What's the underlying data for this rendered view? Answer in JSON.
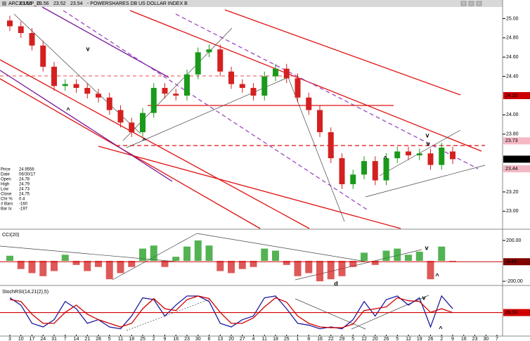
{
  "header": {
    "symbol": "ARCX:UUP_D",
    "name": "- POWERSHARES DB US DOLLAR INDEX B",
    "quote": [
      "23.55",
      "23.56",
      "23.52",
      "23.54"
    ]
  },
  "info": [
    [
      "Price",
      "24.9556"
    ],
    [
      "Date",
      "06/30/17"
    ],
    [
      "Open",
      "24.78"
    ],
    [
      "High",
      "24.79"
    ],
    [
      "Low",
      "24.73"
    ],
    [
      "Close",
      "24.75"
    ],
    [
      "Chr %",
      "0.4"
    ],
    [
      "# Bars",
      "-160"
    ],
    [
      "Bar Ix",
      "-197"
    ]
  ],
  "chart_data": [
    {
      "type": "candlestick",
      "categories": [
        "3",
        "10",
        "17",
        "24",
        "31",
        "7",
        "14",
        "21",
        "28",
        "5",
        "11",
        "18",
        "25",
        "2",
        "9",
        "16",
        "23",
        "30",
        "6",
        "13",
        "20",
        "27",
        "4",
        "11",
        "18",
        "25",
        "1",
        "8",
        "16",
        "22",
        "29",
        "5",
        "12",
        "20",
        "26",
        "5",
        "12",
        "19",
        "26",
        "2",
        "9",
        "16",
        "23",
        "30",
        "7"
      ],
      "open": [
        24.98,
        24.92,
        24.85,
        24.72,
        24.5,
        24.3,
        24.32,
        24.28,
        24.22,
        24.18,
        24.05,
        23.92,
        23.82,
        24.02,
        24.28,
        24.22,
        24.2,
        24.42,
        24.65,
        24.68,
        24.45,
        24.32,
        24.28,
        24.2,
        24.4,
        24.48,
        24.38,
        24.18,
        24.05,
        23.82,
        23.55,
        23.28,
        23.38,
        23.52,
        23.32,
        23.55,
        23.62,
        23.58,
        23.6,
        23.48,
        23.62,
        null,
        null,
        null,
        null
      ],
      "high": [
        25.03,
        24.97,
        24.9,
        24.77,
        24.55,
        24.37,
        24.37,
        24.33,
        24.27,
        24.23,
        24.1,
        23.97,
        24.07,
        24.33,
        24.33,
        24.27,
        24.47,
        24.7,
        24.73,
        24.73,
        24.5,
        24.37,
        24.33,
        24.45,
        24.53,
        24.53,
        24.43,
        24.23,
        24.1,
        23.87,
        23.6,
        23.43,
        23.57,
        23.57,
        23.6,
        23.67,
        23.67,
        23.65,
        23.65,
        23.71,
        23.67,
        null,
        null,
        null,
        null
      ],
      "low": [
        24.87,
        24.8,
        24.67,
        24.45,
        24.25,
        24.25,
        24.23,
        24.17,
        24.13,
        24.0,
        23.87,
        23.77,
        23.77,
        23.97,
        24.17,
        24.15,
        24.15,
        24.37,
        24.6,
        24.4,
        24.27,
        24.23,
        24.15,
        24.15,
        24.35,
        24.33,
        24.13,
        24.0,
        23.77,
        23.5,
        23.23,
        23.23,
        23.33,
        23.27,
        23.27,
        23.5,
        23.53,
        23.53,
        23.43,
        23.43,
        23.49,
        null,
        null,
        null,
        null
      ],
      "close": [
        24.92,
        24.85,
        24.72,
        24.5,
        24.3,
        24.32,
        24.28,
        24.22,
        24.18,
        24.05,
        23.92,
        23.82,
        24.02,
        24.28,
        24.22,
        24.2,
        24.42,
        24.65,
        24.68,
        24.45,
        24.32,
        24.28,
        24.2,
        24.4,
        24.48,
        24.38,
        24.18,
        24.05,
        23.82,
        23.55,
        23.28,
        23.38,
        23.52,
        23.32,
        23.55,
        23.62,
        23.58,
        23.6,
        23.48,
        23.66,
        23.54,
        null,
        null,
        null,
        null
      ],
      "up_color": "#1a9a1a",
      "down_color": "#d42020",
      "ylim": [
        22.82,
        25.12
      ],
      "yticks": [
        {
          "value": 25,
          "label": "25.00"
        },
        {
          "value": 24.8,
          "label": "24.80"
        },
        {
          "value": 24.6,
          "label": "24.60"
        },
        {
          "value": 24.4,
          "label": "24.40"
        },
        {
          "value": 24,
          "label": "24.00"
        },
        {
          "value": 23.8,
          "label": "23.80"
        },
        {
          "value": 23.2,
          "label": "23.20"
        },
        {
          "value": 23,
          "label": "23.00"
        }
      ],
      "readouts": [
        {
          "value": 24.2,
          "label": "24.20",
          "bg": "#cc0000",
          "fg": "#ffffff"
        },
        {
          "value": 23.73,
          "label": "23.73",
          "bg": "#f4b8c4",
          "fg": "#cc0000"
        },
        {
          "value": 23.44,
          "label": "23.44",
          "bg": "#f4b8c4",
          "fg": "#cc0000"
        }
      ],
      "last_bg": "#000000",
      "last_fg": "#ffffff",
      "annotations": [
        {
          "text": "v",
          "color": "#c000c0"
        },
        {
          "text": "^",
          "color": "#c000c0"
        },
        {
          "text": "^",
          "color": "#c000c0"
        },
        {
          "text": "v",
          "color": "#1a9a1a"
        },
        {
          "text": "v",
          "color": "#c000c0"
        },
        {
          "text": "^",
          "color": "#1a9a1a"
        }
      ]
    },
    {
      "type": "bar",
      "title": "CCI(20)",
      "values": [
        50,
        -80,
        -120,
        -150,
        -100,
        60,
        -40,
        -100,
        -60,
        -180,
        -120,
        -60,
        120,
        150,
        -60,
        40,
        140,
        200,
        150,
        -100,
        -120,
        -80,
        -60,
        120,
        100,
        -40,
        -150,
        -120,
        -200,
        -180,
        -150,
        -60,
        80,
        -40,
        100,
        120,
        60,
        90,
        -180,
        140,
        -8.44,
        null,
        null,
        null,
        null
      ],
      "up_color": "#1a9a1a",
      "down_color": "#d42020",
      "ylim": [
        -234,
        303
      ],
      "yticks": [
        {
          "value": 200,
          "label": "200.00"
        },
        {
          "value": -200,
          "label": "-200.00"
        }
      ],
      "last_bg": "#800000",
      "last_fg": "#ffffff",
      "annotations": [
        {
          "text": "v",
          "color": "#cc0000"
        },
        {
          "text": "^",
          "color": "#1a40d0"
        },
        {
          "text": "d",
          "color": "#1a9a1a"
        }
      ]
    },
    {
      "type": "line",
      "title": "StochRSI(14,21(2),5)",
      "series": [
        {
          "color": "#1a1aa0",
          "values": [
            90,
            70,
            20,
            10,
            30,
            80,
            60,
            20,
            30,
            10,
            5,
            40,
            90,
            85,
            40,
            70,
            95,
            95,
            80,
            20,
            10,
            30,
            40,
            90,
            95,
            60,
            20,
            15,
            5,
            10,
            5,
            30,
            80,
            40,
            85,
            95,
            70,
            90,
            10,
            95,
            60,
            null,
            null,
            null,
            null
          ]
        },
        {
          "color": "#d00000",
          "values": [
            85,
            80,
            45,
            20,
            20,
            50,
            70,
            45,
            30,
            20,
            10,
            20,
            60,
            88,
            60,
            55,
            85,
            95,
            88,
            50,
            20,
            20,
            35,
            65,
            90,
            78,
            40,
            20,
            10,
            8,
            8,
            18,
            55,
            60,
            65,
            90,
            82,
            80,
            50,
            60,
            49.5,
            null,
            null,
            null,
            null
          ]
        }
      ],
      "ylim": [
        -15,
        120
      ],
      "readouts": [
        {
          "value": 49.5,
          "label": "49.50",
          "bg": "#d00000",
          "fg": "#ffffff"
        }
      ],
      "annotations": [
        {
          "text": "v",
          "color": "#cc0000"
        },
        {
          "text": "^",
          "color": "#1a40d0"
        }
      ]
    }
  ]
}
